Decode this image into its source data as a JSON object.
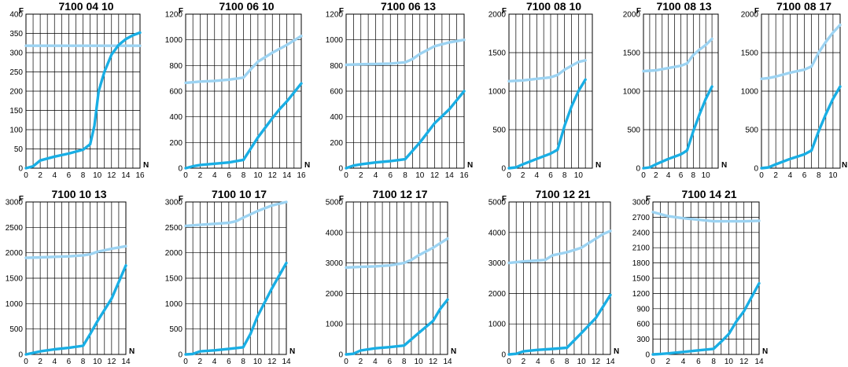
{
  "colors": {
    "upper": "#9cd3f2",
    "lower": "#19aee4",
    "grid": "#000000"
  },
  "chart_data": [
    {
      "type": "line",
      "title": "7100 04 10",
      "xlabel": "N",
      "ylabel": "F",
      "xlim": [
        0,
        16
      ],
      "ylim": [
        0,
        400
      ],
      "xticks": [
        "0",
        "2",
        "4",
        "6",
        "8",
        "10",
        "12",
        "14",
        "16"
      ],
      "yticks": [
        "0",
        "50",
        "100",
        "150",
        "200",
        "250",
        "300",
        "350",
        "400"
      ],
      "series": [
        {
          "x": [
            0,
            16
          ],
          "y": [
            318,
            318
          ]
        },
        {
          "x": [
            0,
            1,
            2,
            4,
            6,
            8,
            9,
            9.6,
            10.2,
            11,
            12,
            13,
            14,
            15,
            16
          ],
          "y": [
            0,
            5,
            20,
            30,
            38,
            48,
            62,
            110,
            200,
            250,
            295,
            320,
            335,
            345,
            352
          ]
        }
      ]
    },
    {
      "type": "line",
      "title": "7100 06 10",
      "xlabel": "N",
      "ylabel": "F",
      "xlim": [
        0,
        16
      ],
      "ylim": [
        0,
        1200
      ],
      "xticks": [
        "0",
        "2",
        "4",
        "6",
        "8",
        "10",
        "12",
        "14",
        "16"
      ],
      "yticks": [
        "0",
        "200",
        "400",
        "600",
        "800",
        "1000",
        "1200"
      ],
      "series": [
        {
          "x": [
            0,
            2,
            4,
            6,
            8,
            9,
            10,
            12,
            14,
            16
          ],
          "y": [
            665,
            675,
            680,
            690,
            705,
            770,
            830,
            900,
            960,
            1030
          ]
        },
        {
          "x": [
            0,
            1,
            2,
            4,
            6,
            8,
            10,
            12,
            13,
            14,
            16
          ],
          "y": [
            0,
            15,
            25,
            35,
            45,
            65,
            240,
            390,
            460,
            520,
            660
          ]
        }
      ]
    },
    {
      "type": "line",
      "title": "7100 06 13",
      "xlabel": "N",
      "ylabel": "F",
      "xlim": [
        0,
        16
      ],
      "ylim": [
        0,
        1200
      ],
      "xticks": [
        "0",
        "2",
        "4",
        "6",
        "8",
        "10",
        "12",
        "14",
        "16"
      ],
      "yticks": [
        "0",
        "200",
        "400",
        "600",
        "800",
        "1000",
        "1200"
      ],
      "series": [
        {
          "x": [
            0,
            2,
            4,
            6,
            8,
            9,
            10,
            12,
            14,
            16
          ],
          "y": [
            805,
            810,
            812,
            815,
            825,
            850,
            890,
            950,
            980,
            1000
          ]
        },
        {
          "x": [
            0,
            1,
            2,
            4,
            6,
            8,
            10,
            12,
            14,
            16
          ],
          "y": [
            0,
            20,
            30,
            45,
            55,
            70,
            200,
            350,
            460,
            600
          ]
        }
      ]
    },
    {
      "type": "line",
      "title": "7100 08 10",
      "xlabel": "N",
      "ylabel": "F",
      "xlim": [
        0,
        12
      ],
      "ylim": [
        0,
        2000
      ],
      "xticks": [
        "0",
        "2",
        "4",
        "6",
        "8",
        "10"
      ],
      "yticks": [
        "0",
        "500",
        "1000",
        "1500",
        "2000"
      ],
      "series": [
        {
          "x": [
            0,
            2,
            4,
            6,
            7,
            8,
            9,
            10,
            11
          ],
          "y": [
            1130,
            1140,
            1160,
            1180,
            1210,
            1280,
            1330,
            1380,
            1400
          ]
        },
        {
          "x": [
            0,
            1,
            2,
            4,
            6,
            7,
            8,
            9,
            10,
            11
          ],
          "y": [
            0,
            10,
            50,
            120,
            190,
            240,
            550,
            800,
            1000,
            1150
          ]
        }
      ]
    },
    {
      "type": "line",
      "title": "7100 08 13",
      "xlabel": "N",
      "ylabel": "F",
      "xlim": [
        0,
        12
      ],
      "ylim": [
        0,
        2000
      ],
      "xticks": [
        "0",
        "2",
        "4",
        "6",
        "8",
        "10"
      ],
      "yticks": [
        "0",
        "500",
        "1000",
        "1500",
        "2000"
      ],
      "series": [
        {
          "x": [
            0,
            2,
            4,
            6,
            7,
            8,
            9,
            10,
            11
          ],
          "y": [
            1260,
            1270,
            1300,
            1330,
            1360,
            1470,
            1540,
            1600,
            1680
          ]
        },
        {
          "x": [
            0,
            1,
            2,
            4,
            6,
            7,
            8,
            9,
            10,
            11
          ],
          "y": [
            0,
            10,
            50,
            120,
            180,
            230,
            480,
            700,
            900,
            1060
          ]
        }
      ]
    },
    {
      "type": "line",
      "title": "7100 08 17",
      "xlabel": "N",
      "ylabel": "F",
      "xlim": [
        0,
        11
      ],
      "ylim": [
        0,
        2000
      ],
      "xticks": [
        "0",
        "2",
        "4",
        "6",
        "8",
        "10"
      ],
      "yticks": [
        "0",
        "500",
        "1000",
        "1500",
        "2000"
      ],
      "series": [
        {
          "x": [
            0,
            1,
            2,
            4,
            6,
            7,
            8,
            9,
            10,
            11
          ],
          "y": [
            1160,
            1170,
            1190,
            1240,
            1280,
            1320,
            1500,
            1640,
            1760,
            1860
          ]
        },
        {
          "x": [
            0,
            1,
            2,
            4,
            6,
            7,
            8,
            9,
            10,
            11
          ],
          "y": [
            0,
            10,
            50,
            120,
            180,
            230,
            480,
            700,
            900,
            1060
          ]
        }
      ]
    },
    {
      "type": "line",
      "title": "7100 10 13",
      "xlabel": "N",
      "ylabel": "F",
      "xlim": [
        0,
        14
      ],
      "ylim": [
        0,
        3000
      ],
      "xticks": [
        "0",
        "2",
        "4",
        "6",
        "8",
        "10",
        "12",
        "14"
      ],
      "yticks": [
        "0",
        "500",
        "1000",
        "1500",
        "2000",
        "2500",
        "3000"
      ],
      "series": [
        {
          "x": [
            0,
            2,
            4,
            6,
            8,
            9,
            10,
            12,
            14
          ],
          "y": [
            1900,
            1910,
            1920,
            1930,
            1950,
            1970,
            2020,
            2080,
            2130
          ]
        },
        {
          "x": [
            0,
            1,
            2,
            4,
            6,
            8,
            9,
            10,
            12,
            14
          ],
          "y": [
            0,
            30,
            60,
            100,
            130,
            170,
            400,
            650,
            1100,
            1750
          ]
        }
      ]
    },
    {
      "type": "line",
      "title": "7100 10 17",
      "xlabel": "N",
      "ylabel": "F",
      "xlim": [
        0,
        14
      ],
      "ylim": [
        0,
        3000
      ],
      "xticks": [
        "0",
        "2",
        "4",
        "6",
        "8",
        "10",
        "12",
        "14"
      ],
      "yticks": [
        "0",
        "500",
        "1000",
        "1500",
        "2000",
        "2500",
        "3000"
      ],
      "series": [
        {
          "x": [
            0,
            2,
            4,
            6,
            7,
            8,
            10,
            12,
            14
          ],
          "y": [
            2530,
            2550,
            2570,
            2590,
            2620,
            2690,
            2820,
            2930,
            3000
          ]
        },
        {
          "x": [
            0,
            1,
            2,
            4,
            6,
            8,
            9,
            10,
            12,
            14
          ],
          "y": [
            0,
            10,
            60,
            80,
            110,
            140,
            400,
            750,
            1300,
            1800
          ]
        }
      ]
    },
    {
      "type": "line",
      "title": "7100 12 17",
      "xlabel": "N",
      "ylabel": "F",
      "xlim": [
        0,
        14
      ],
      "ylim": [
        0,
        5000
      ],
      "xticks": [
        "0",
        "2",
        "4",
        "6",
        "8",
        "10",
        "12",
        "14"
      ],
      "yticks": [
        "0",
        "1000",
        "2000",
        "3000",
        "4000",
        "5000"
      ],
      "series": [
        {
          "x": [
            0,
            2,
            4,
            6,
            8,
            9,
            10,
            12,
            14
          ],
          "y": [
            2850,
            2870,
            2890,
            2920,
            3000,
            3100,
            3250,
            3500,
            3800
          ]
        },
        {
          "x": [
            0,
            1,
            2,
            4,
            6,
            8,
            10,
            12,
            13,
            14
          ],
          "y": [
            0,
            20,
            130,
            200,
            240,
            290,
            700,
            1100,
            1500,
            1800
          ]
        }
      ]
    },
    {
      "type": "line",
      "title": "7100 12 21",
      "xlabel": "N",
      "ylabel": "F",
      "xlim": [
        0,
        14
      ],
      "ylim": [
        0,
        5000
      ],
      "xticks": [
        "0",
        "2",
        "4",
        "6",
        "8",
        "10",
        "12",
        "14"
      ],
      "yticks": [
        "0",
        "1000",
        "2000",
        "3000",
        "4000",
        "5000"
      ],
      "series": [
        {
          "x": [
            0,
            2,
            4,
            5,
            6,
            8,
            10,
            12,
            13,
            14
          ],
          "y": [
            3000,
            3050,
            3080,
            3100,
            3250,
            3350,
            3500,
            3800,
            3950,
            4050
          ]
        },
        {
          "x": [
            0,
            1,
            2,
            4,
            6,
            8,
            10,
            12,
            14
          ],
          "y": [
            0,
            20,
            100,
            150,
            180,
            220,
            700,
            1200,
            1950
          ]
        }
      ]
    },
    {
      "type": "line",
      "title": "7100 14 21",
      "xlabel": "N",
      "ylabel": "F",
      "xlim": [
        0,
        14
      ],
      "ylim": [
        0,
        3000
      ],
      "xticks": [
        "0",
        "2",
        "4",
        "6",
        "8",
        "10",
        "12",
        "14"
      ],
      "yticks": [
        "0",
        "300",
        "600",
        "900",
        "1200",
        "1500",
        "1800",
        "2100",
        "2400",
        "2700",
        "3000"
      ],
      "series": [
        {
          "x": [
            0,
            2,
            4,
            6,
            8,
            10,
            12,
            14
          ],
          "y": [
            2800,
            2720,
            2680,
            2650,
            2620,
            2620,
            2620,
            2630
          ]
        },
        {
          "x": [
            0,
            1,
            2,
            4,
            6,
            8,
            9,
            10,
            11,
            12,
            14
          ],
          "y": [
            0,
            10,
            20,
            50,
            80,
            110,
            250,
            400,
            650,
            850,
            1400
          ]
        }
      ]
    }
  ]
}
